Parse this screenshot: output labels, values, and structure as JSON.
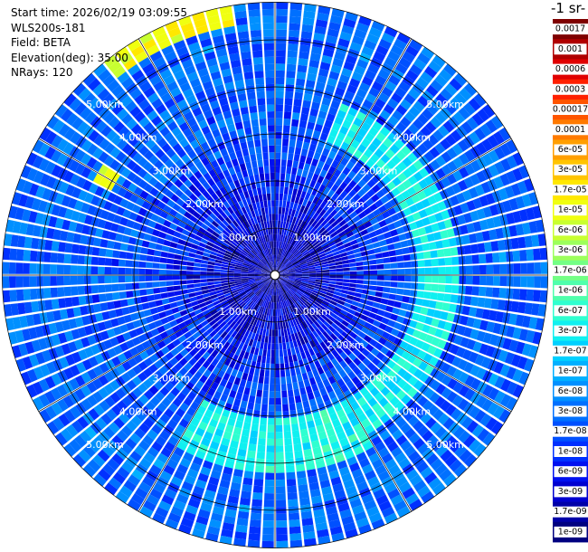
{
  "header": {
    "start_time": "Start time: 2026/02/19 03:09:55",
    "instrument": "WLS200s-181",
    "field": "Field: BETA",
    "elevation": "Elevation(deg): 35.00",
    "nrays": "NRays: 120"
  },
  "colorbar": {
    "unit_label": "-1 sr-",
    "ticks": [
      "0.0017",
      "0.001",
      "0.0006",
      "0.0003",
      "0.00017",
      "0.0001",
      "6e-05",
      "3e-05",
      "1.7e-05",
      "1e-05",
      "6e-06",
      "3e-06",
      "1.7e-06",
      "1e-06",
      "6e-07",
      "3e-07",
      "1.7e-07",
      "1e-07",
      "6e-08",
      "3e-08",
      "1.7e-08",
      "1e-08",
      "6e-09",
      "3e-09",
      "1.7e-09",
      "1e-09"
    ],
    "colors": [
      "#7f0000",
      "#b00000",
      "#e00000",
      "#ff2000",
      "#ff5500",
      "#ff7a00",
      "#ff9f00",
      "#ffc400",
      "#ffe800",
      "#f0ff10",
      "#c8ff30",
      "#9cff5c",
      "#73ff85",
      "#4fffac",
      "#2fffd0",
      "#10f0f0",
      "#00d0ff",
      "#00b0ff",
      "#0090ff",
      "#0070ff",
      "#0050ff",
      "#0030ff",
      "#0010f0",
      "#0000d0",
      "#0000a8",
      "#000080"
    ]
  },
  "chart_data": {
    "type": "heatmap",
    "subtype": "ppi-polar",
    "title": "",
    "rings_km": [
      1,
      2,
      3,
      4,
      5
    ],
    "ring_labels": [
      "1.00km",
      "2.00km",
      "3.00km",
      "4.00km",
      "5.00km"
    ],
    "max_range_km": 5.8,
    "nrays": 120,
    "range_gates": 40,
    "value_scale": "log",
    "value_range": [
      1e-09,
      0.0017
    ],
    "radial_profile_log10": [
      [
        0.0,
        -8.6
      ],
      [
        1.0,
        -8.4
      ],
      [
        2.0,
        -8.0
      ],
      [
        3.0,
        -7.7
      ],
      [
        4.0,
        -7.6
      ],
      [
        5.0,
        -7.5
      ],
      [
        5.8,
        -7.6
      ]
    ],
    "features": [
      {
        "description": "strong return band",
        "azimuth_deg": [
          320,
          350
        ],
        "range_km": [
          5.3,
          5.8
        ],
        "log10_value": -5.0
      },
      {
        "description": "isolated strong gates",
        "azimuth_deg": [
          298,
          303
        ],
        "range_km": [
          3.9,
          4.3
        ],
        "log10_value": -5.0
      },
      {
        "description": "enhanced ring sector",
        "azimuth_deg": [
          20,
          150
        ],
        "range_km": [
          3.1,
          3.9
        ],
        "log10_value": -6.5
      },
      {
        "description": "enhanced ring sector",
        "azimuth_deg": [
          150,
          210
        ],
        "range_km": [
          3.0,
          4.2
        ],
        "log10_value": -6.4
      }
    ]
  }
}
